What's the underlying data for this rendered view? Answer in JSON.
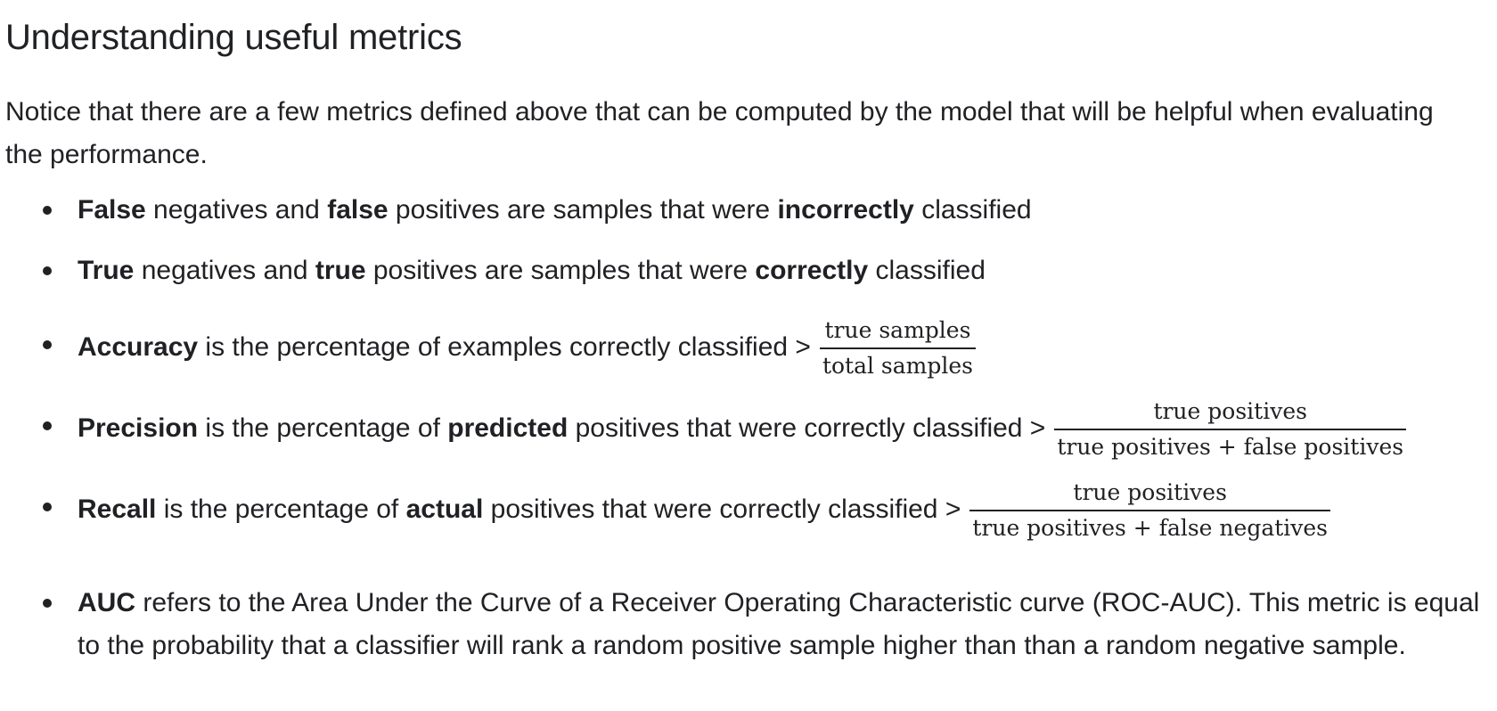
{
  "heading": "Understanding useful metrics",
  "intro": "Notice that there are a few metrics defined above that can be computed by the model that will be helpful when evaluating the performance.",
  "items": {
    "false_item": {
      "b1": "False",
      "t1": " negatives and ",
      "b2": "false",
      "t2": " positives are samples that were ",
      "b3": "incorrectly",
      "t3": " classified"
    },
    "true_item": {
      "b1": "True",
      "t1": " negatives and ",
      "b2": "true",
      "t2": " positives are samples that were ",
      "b3": "correctly",
      "t3": " classified"
    },
    "accuracy": {
      "b1": "Accuracy",
      "t1": " is the percentage of examples correctly classified >",
      "num": "true samples",
      "den": "total samples"
    },
    "precision": {
      "b1": "Precision",
      "t1": " is the percentage of ",
      "b2": "predicted",
      "t2": " positives that were correctly classified >",
      "num": "true positives",
      "den": "true positives + false positives"
    },
    "recall": {
      "b1": "Recall",
      "t1": " is the percentage of ",
      "b2": "actual",
      "t2": " positives that were correctly classified >",
      "num": "true positives",
      "den": "true positives + false negatives"
    },
    "auc": {
      "b1": "AUC",
      "t1": " refers to the Area Under the Curve of a Receiver Operating Characteristic curve (ROC-AUC). This metric is equal to the probability that a classifier will rank a random positive sample higher than than a random negative sample."
    }
  }
}
